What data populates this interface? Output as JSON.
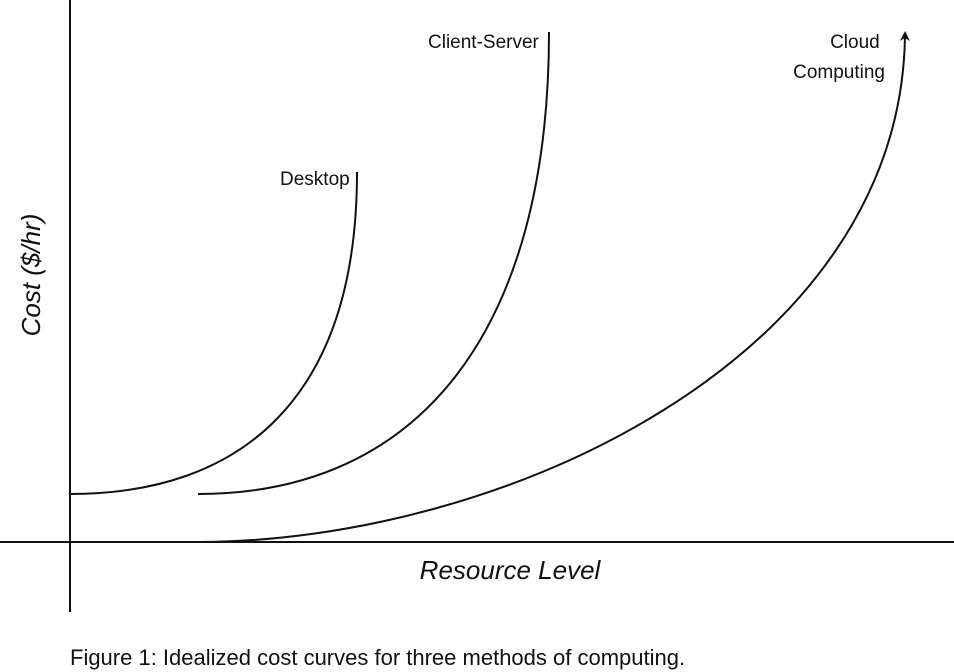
{
  "diagram": {
    "y_axis_label": "Cost ($/hr)",
    "x_axis_label": "Resource Level",
    "curves": [
      {
        "label": "Desktop"
      },
      {
        "label": "Client-Server"
      },
      {
        "label_line1": "Cloud",
        "label_line2": "Computing"
      }
    ]
  },
  "caption": "Figure 1: Idealized cost curves for three methods of computing.",
  "colors": {
    "ink": "#111111",
    "background": "#ffffff"
  }
}
